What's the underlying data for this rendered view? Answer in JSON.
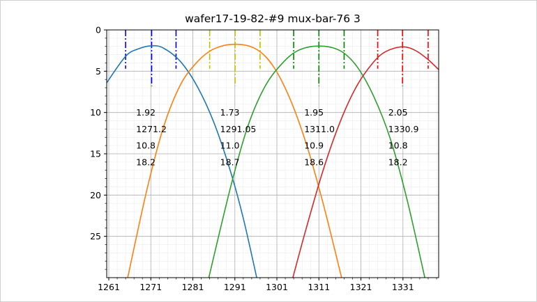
{
  "chart_data": {
    "type": "line",
    "title": "wafer17-19-82-#9 mux-bar-76 3",
    "xlabel": "",
    "ylabel": "",
    "xlim": [
      1260.5,
      1339.5
    ],
    "ylim": [
      30,
      0
    ],
    "y_inverted": true,
    "grid": "major and minor",
    "x_ticks": [
      "1261",
      "1271",
      "1281",
      "1291",
      "1301",
      "1311",
      "1321",
      "1331"
    ],
    "y_ticks": [
      "0",
      "5",
      "10",
      "15",
      "20",
      "25"
    ],
    "series": [
      {
        "color": "#1f77b4",
        "x": [
          1260.5,
          1265,
          1268,
          1271.2,
          1274,
          1278,
          1282,
          1286,
          1290,
          1293,
          1296.2
        ],
        "y": [
          6.4,
          3.2,
          2.3,
          1.92,
          2.2,
          3.8,
          6.8,
          11.2,
          17.2,
          22.8,
          30.0
        ]
      },
      {
        "color": "#ff7f0e",
        "x": [
          1265.5,
          1270,
          1274,
          1278,
          1282,
          1286,
          1291.05,
          1296,
          1300,
          1304,
          1308,
          1312,
          1316.4
        ],
        "y": [
          30.0,
          19.5,
          11.8,
          6.7,
          3.9,
          2.3,
          1.73,
          2.3,
          4.3,
          8.2,
          13.8,
          21.0,
          30.0
        ]
      },
      {
        "color": "#2ca02c",
        "x": [
          1284.8,
          1290,
          1294,
          1298,
          1302,
          1306,
          1311.0,
          1316,
          1320,
          1324,
          1328,
          1332,
          1336.2
        ],
        "y": [
          30.0,
          19.0,
          11.8,
          7.0,
          4.2,
          2.5,
          1.95,
          2.5,
          4.4,
          8.0,
          13.2,
          20.6,
          30.0
        ]
      },
      {
        "color": "#d62728",
        "x": [
          1304.8,
          1308,
          1312,
          1316,
          1320,
          1324,
          1327,
          1330.9,
          1334,
          1337,
          1339.5
        ],
        "y": [
          30.0,
          24.0,
          17.0,
          11.2,
          6.8,
          3.9,
          2.6,
          2.05,
          2.5,
          3.6,
          4.8
        ]
      }
    ],
    "markers": [
      {
        "x": 1265.0,
        "color": "#0000ff",
        "y_from": 0,
        "y_to": 4.7
      },
      {
        "x": 1271.2,
        "color": "#0000ff",
        "y_from": 0,
        "y_to": 6.8
      },
      {
        "x": 1277.0,
        "color": "#0000ff",
        "y_from": 0,
        "y_to": 4.7
      },
      {
        "x": 1285.0,
        "color": "#bfbf00",
        "y_from": 0,
        "y_to": 4.7
      },
      {
        "x": 1291.05,
        "color": "#bfbf00",
        "y_from": 0,
        "y_to": 6.8
      },
      {
        "x": 1297.0,
        "color": "#bfbf00",
        "y_from": 0,
        "y_to": 4.7
      },
      {
        "x": 1305.0,
        "color": "#008000",
        "y_from": 0,
        "y_to": 4.7
      },
      {
        "x": 1311.0,
        "color": "#008000",
        "y_from": 0,
        "y_to": 6.8
      },
      {
        "x": 1317.0,
        "color": "#008000",
        "y_from": 0,
        "y_to": 4.7
      },
      {
        "x": 1325.0,
        "color": "#ff0000",
        "y_from": 0,
        "y_to": 4.7
      },
      {
        "x": 1330.9,
        "color": "#ff0000",
        "y_from": 0,
        "y_to": 6.8
      },
      {
        "x": 1337.0,
        "color": "#ff0000",
        "y_from": 0,
        "y_to": 4.7
      }
    ],
    "annotations": [
      {
        "x": 1267.5,
        "lines": [
          "1.92",
          "1271.2",
          "10.8",
          "18.2"
        ]
      },
      {
        "x": 1287.5,
        "lines": [
          "1.73",
          "1291.05",
          "11.0",
          "18.7"
        ]
      },
      {
        "x": 1307.5,
        "lines": [
          "1.95",
          "1311.0",
          "10.9",
          "18.6"
        ]
      },
      {
        "x": 1327.5,
        "lines": [
          "2.05",
          "1330.9",
          "10.8",
          "18.2"
        ]
      }
    ],
    "annotation_line_y": [
      10,
      12,
      14,
      16
    ]
  }
}
